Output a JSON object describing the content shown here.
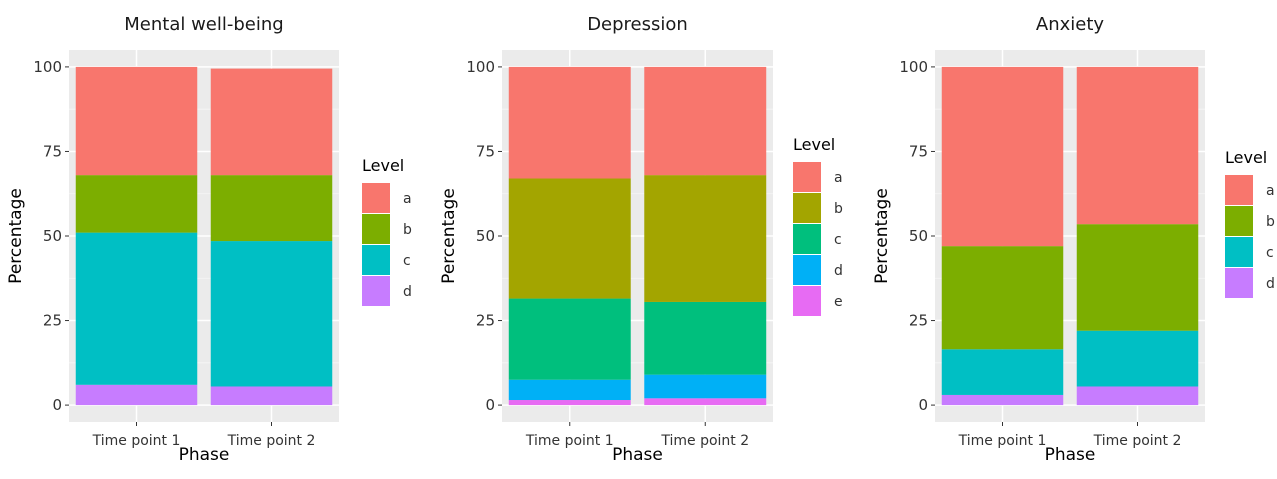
{
  "chart_data": [
    {
      "type": "bar",
      "stacked": true,
      "title": "Mental well-being",
      "xlabel": "Phase",
      "ylabel": "Percentage",
      "ylim": [
        0,
        100
      ],
      "yticks": [
        0,
        25,
        50,
        75,
        100
      ],
      "categories": [
        "Time point 1",
        "Time point 2"
      ],
      "legend_title": "Level",
      "series": [
        {
          "name": "a",
          "color": "#F8766D",
          "values": [
            32,
            31.5
          ]
        },
        {
          "name": "b",
          "color": "#7CAE00",
          "values": [
            17,
            19.5
          ]
        },
        {
          "name": "c",
          "color": "#00BFC4",
          "values": [
            45,
            43
          ]
        },
        {
          "name": "d",
          "color": "#C77CFF",
          "values": [
            6,
            5.5
          ]
        }
      ]
    },
    {
      "type": "bar",
      "stacked": true,
      "title": "Depression",
      "xlabel": "Phase",
      "ylabel": "Percentage",
      "ylim": [
        0,
        100
      ],
      "yticks": [
        0,
        25,
        50,
        75,
        100
      ],
      "categories": [
        "Time point 1",
        "Time point 2"
      ],
      "legend_title": "Level",
      "series": [
        {
          "name": "a",
          "color": "#F8766D",
          "values": [
            33,
            32
          ]
        },
        {
          "name": "b",
          "color": "#A3A500",
          "values": [
            35.5,
            37.5
          ]
        },
        {
          "name": "c",
          "color": "#00BF7D",
          "values": [
            24,
            21.5
          ]
        },
        {
          "name": "d",
          "color": "#00B0F6",
          "values": [
            6,
            7
          ]
        },
        {
          "name": "e",
          "color": "#E76BF3",
          "values": [
            1.5,
            2
          ]
        }
      ]
    },
    {
      "type": "bar",
      "stacked": true,
      "title": "Anxiety",
      "xlabel": "Phase",
      "ylabel": "Percentage",
      "ylim": [
        0,
        100
      ],
      "yticks": [
        0,
        25,
        50,
        75,
        100
      ],
      "categories": [
        "Time point 1",
        "Time point 2"
      ],
      "legend_title": "Level",
      "series": [
        {
          "name": "a",
          "color": "#F8766D",
          "values": [
            53,
            46.5
          ]
        },
        {
          "name": "b",
          "color": "#7CAE00",
          "values": [
            30.5,
            31.5
          ]
        },
        {
          "name": "c",
          "color": "#00BFC4",
          "values": [
            13.5,
            16.5
          ]
        },
        {
          "name": "d",
          "color": "#C77CFF",
          "values": [
            3,
            5.5
          ]
        }
      ]
    }
  ]
}
